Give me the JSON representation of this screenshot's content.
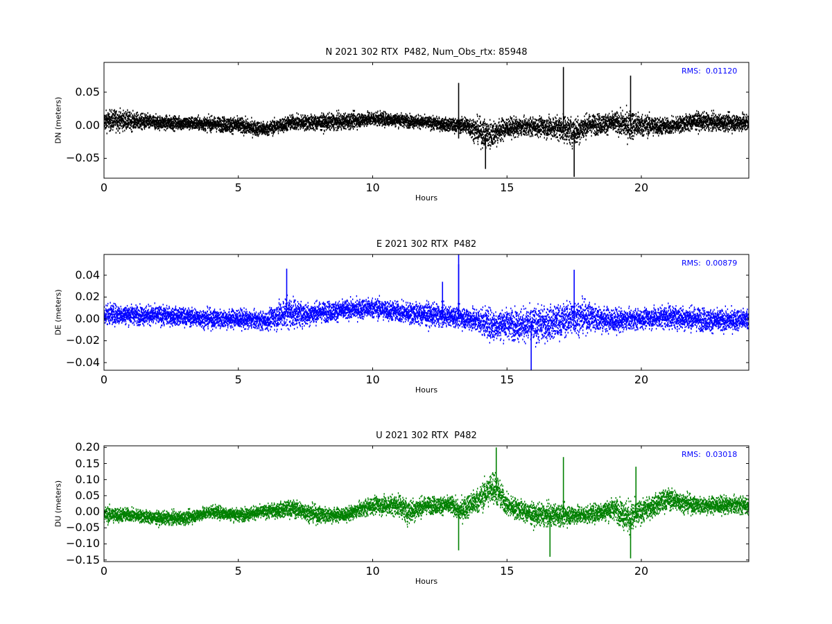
{
  "chart_data": [
    {
      "type": "scatter",
      "title": "N 2021 302 RTX  P482, Num_Obs_rtx: 85948",
      "xlabel": "Hours",
      "ylabel": "DN (meters)",
      "rms_label": "RMS:  0.01120",
      "color": "#000000",
      "rms_color": "#0000ff",
      "xlim": [
        0,
        24
      ],
      "ylim": [
        -0.08,
        0.095
      ],
      "xticks": [
        0,
        5,
        10,
        15,
        20
      ],
      "xtick_labels": [
        "0",
        "5",
        "10",
        "15",
        "20"
      ],
      "yticks": [
        -0.05,
        0.0,
        0.05
      ],
      "ytick_labels": [
        "−0.05",
        "0.00",
        "0.05"
      ],
      "envelope": {
        "hours": [
          0,
          0.5,
          1,
          2,
          3,
          4,
          5,
          5.5,
          6,
          7,
          8,
          9,
          10,
          11,
          12,
          13,
          13.2,
          13.5,
          14,
          14.3,
          15,
          16,
          17,
          17.5,
          18,
          19,
          19.5,
          20,
          21,
          22,
          23,
          24
        ],
        "center": [
          0.006,
          0.008,
          0.006,
          0.004,
          0.003,
          0.002,
          0.0,
          -0.004,
          -0.006,
          0.004,
          0.004,
          0.006,
          0.01,
          0.008,
          0.004,
          0.0,
          0.0,
          0.0,
          -0.01,
          -0.015,
          -0.004,
          -0.002,
          -0.004,
          -0.01,
          0.0,
          0.004,
          0.0,
          0.0,
          -0.002,
          0.006,
          0.004,
          0.004
        ],
        "amplitude": [
          0.022,
          0.024,
          0.02,
          0.016,
          0.015,
          0.016,
          0.018,
          0.017,
          0.016,
          0.017,
          0.018,
          0.018,
          0.016,
          0.015,
          0.014,
          0.015,
          0.016,
          0.02,
          0.03,
          0.034,
          0.022,
          0.02,
          0.028,
          0.034,
          0.024,
          0.022,
          0.034,
          0.026,
          0.018,
          0.02,
          0.018,
          0.022
        ]
      },
      "spikes": [
        [
          13.2,
          0.064
        ],
        [
          13.2,
          -0.02
        ],
        [
          17.1,
          0.088
        ],
        [
          17.5,
          -0.078
        ],
        [
          19.6,
          0.075
        ],
        [
          14.2,
          -0.066
        ]
      ]
    },
    {
      "type": "scatter",
      "title": "E 2021 302 RTX  P482",
      "xlabel": "Hours",
      "ylabel": "DE (meters)",
      "rms_label": "RMS:  0.00879",
      "color": "#0000ff",
      "rms_color": "#0000ff",
      "xlim": [
        0,
        24
      ],
      "ylim": [
        -0.047,
        0.059
      ],
      "xticks": [
        0,
        5,
        10,
        15,
        20
      ],
      "xtick_labels": [
        "0",
        "5",
        "10",
        "15",
        "20"
      ],
      "yticks": [
        -0.04,
        -0.02,
        0.0,
        0.02,
        0.04
      ],
      "ytick_labels": [
        "−0.04",
        "−0.02",
        "0.00",
        "0.02",
        "0.04"
      ],
      "envelope": {
        "hours": [
          0,
          1,
          2,
          3,
          4,
          5,
          6,
          6.8,
          7.5,
          8,
          9,
          10,
          11,
          12,
          13,
          13.2,
          14,
          14.5,
          15,
          16,
          17,
          17.5,
          18,
          19,
          20,
          21,
          22,
          23,
          24
        ],
        "center": [
          0.004,
          0.004,
          0.003,
          0.002,
          0.0,
          0.0,
          -0.002,
          0.006,
          0.004,
          0.006,
          0.008,
          0.01,
          0.006,
          0.004,
          0.002,
          0.002,
          -0.002,
          -0.006,
          -0.004,
          -0.006,
          -0.002,
          0.002,
          0.002,
          -0.002,
          0.0,
          0.002,
          0.0,
          -0.002,
          0.0
        ],
        "amplitude": [
          0.014,
          0.013,
          0.013,
          0.012,
          0.013,
          0.013,
          0.012,
          0.022,
          0.016,
          0.014,
          0.013,
          0.014,
          0.014,
          0.016,
          0.013,
          0.014,
          0.018,
          0.022,
          0.02,
          0.024,
          0.022,
          0.024,
          0.02,
          0.016,
          0.013,
          0.016,
          0.016,
          0.015,
          0.014
        ]
      },
      "spikes": [
        [
          13.2,
          0.059
        ],
        [
          13.2,
          0.05
        ],
        [
          6.8,
          0.046
        ],
        [
          15.9,
          -0.047
        ],
        [
          17.5,
          0.045
        ],
        [
          12.6,
          0.034
        ]
      ]
    },
    {
      "type": "scatter",
      "title": "U 2021 302 RTX  P482",
      "xlabel": "Hours",
      "ylabel": "DU (meters)",
      "rms_label": "RMS:  0.03018",
      "color": "#008000",
      "rms_color": "#0000ff",
      "xlim": [
        0,
        24
      ],
      "ylim": [
        -0.155,
        0.205
      ],
      "xticks": [
        0,
        5,
        10,
        15,
        20
      ],
      "xtick_labels": [
        "0",
        "5",
        "10",
        "15",
        "20"
      ],
      "yticks": [
        -0.15,
        -0.1,
        -0.05,
        0.0,
        0.05,
        0.1,
        0.15,
        0.2
      ],
      "ytick_labels": [
        "−0.15",
        "−0.10",
        "−0.05",
        "0.00",
        "0.05",
        "0.10",
        "0.15",
        "0.20"
      ],
      "envelope": {
        "hours": [
          0,
          1,
          2,
          3,
          4,
          5,
          6,
          7,
          8,
          9,
          10,
          11,
          11.3,
          12,
          13,
          13.2,
          14,
          14.5,
          15,
          16,
          17,
          18,
          19,
          19.6,
          20,
          21,
          22,
          23,
          24
        ],
        "center": [
          -0.01,
          -0.01,
          -0.02,
          -0.02,
          0.0,
          -0.01,
          0.0,
          0.01,
          -0.01,
          -0.01,
          0.02,
          0.02,
          0.0,
          0.02,
          0.02,
          0.0,
          0.04,
          0.08,
          0.02,
          -0.01,
          -0.01,
          -0.01,
          0.01,
          -0.02,
          0.0,
          0.04,
          0.02,
          0.02,
          0.02
        ],
        "amplitude": [
          0.04,
          0.03,
          0.03,
          0.03,
          0.03,
          0.03,
          0.03,
          0.04,
          0.04,
          0.03,
          0.04,
          0.05,
          0.06,
          0.04,
          0.04,
          0.05,
          0.06,
          0.08,
          0.05,
          0.05,
          0.05,
          0.04,
          0.05,
          0.08,
          0.05,
          0.05,
          0.04,
          0.04,
          0.04
        ]
      },
      "spikes": [
        [
          13.2,
          -0.12
        ],
        [
          14.6,
          0.2
        ],
        [
          16.6,
          -0.14
        ],
        [
          19.8,
          0.14
        ],
        [
          19.6,
          -0.145
        ],
        [
          17.1,
          0.17
        ]
      ]
    }
  ]
}
